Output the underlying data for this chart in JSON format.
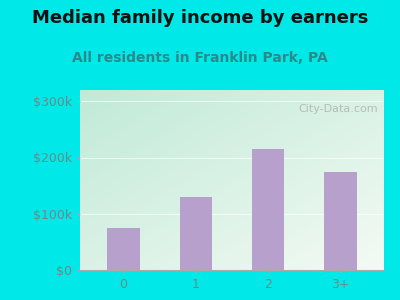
{
  "title": "Median family income by earners",
  "subtitle": "All residents in Franklin Park, PA",
  "categories": [
    "0",
    "1",
    "2",
    "3+"
  ],
  "values": [
    75000,
    130000,
    215000,
    175000
  ],
  "bar_color": "#b8a0cc",
  "outer_bg": "#00e8e8",
  "plot_bg_topleft": "#c0ead8",
  "plot_bg_bottomright": "#f4faf4",
  "title_color": "#111111",
  "subtitle_color": "#2a8a8a",
  "tick_color": "#6a8a8a",
  "yticks": [
    0,
    100000,
    200000,
    300000
  ],
  "ytick_labels": [
    "$0",
    "$100k",
    "$200k",
    "$300k"
  ],
  "ylim": [
    0,
    320000
  ],
  "watermark": "City-Data.com",
  "title_fontsize": 13,
  "subtitle_fontsize": 10,
  "tick_fontsize": 9
}
